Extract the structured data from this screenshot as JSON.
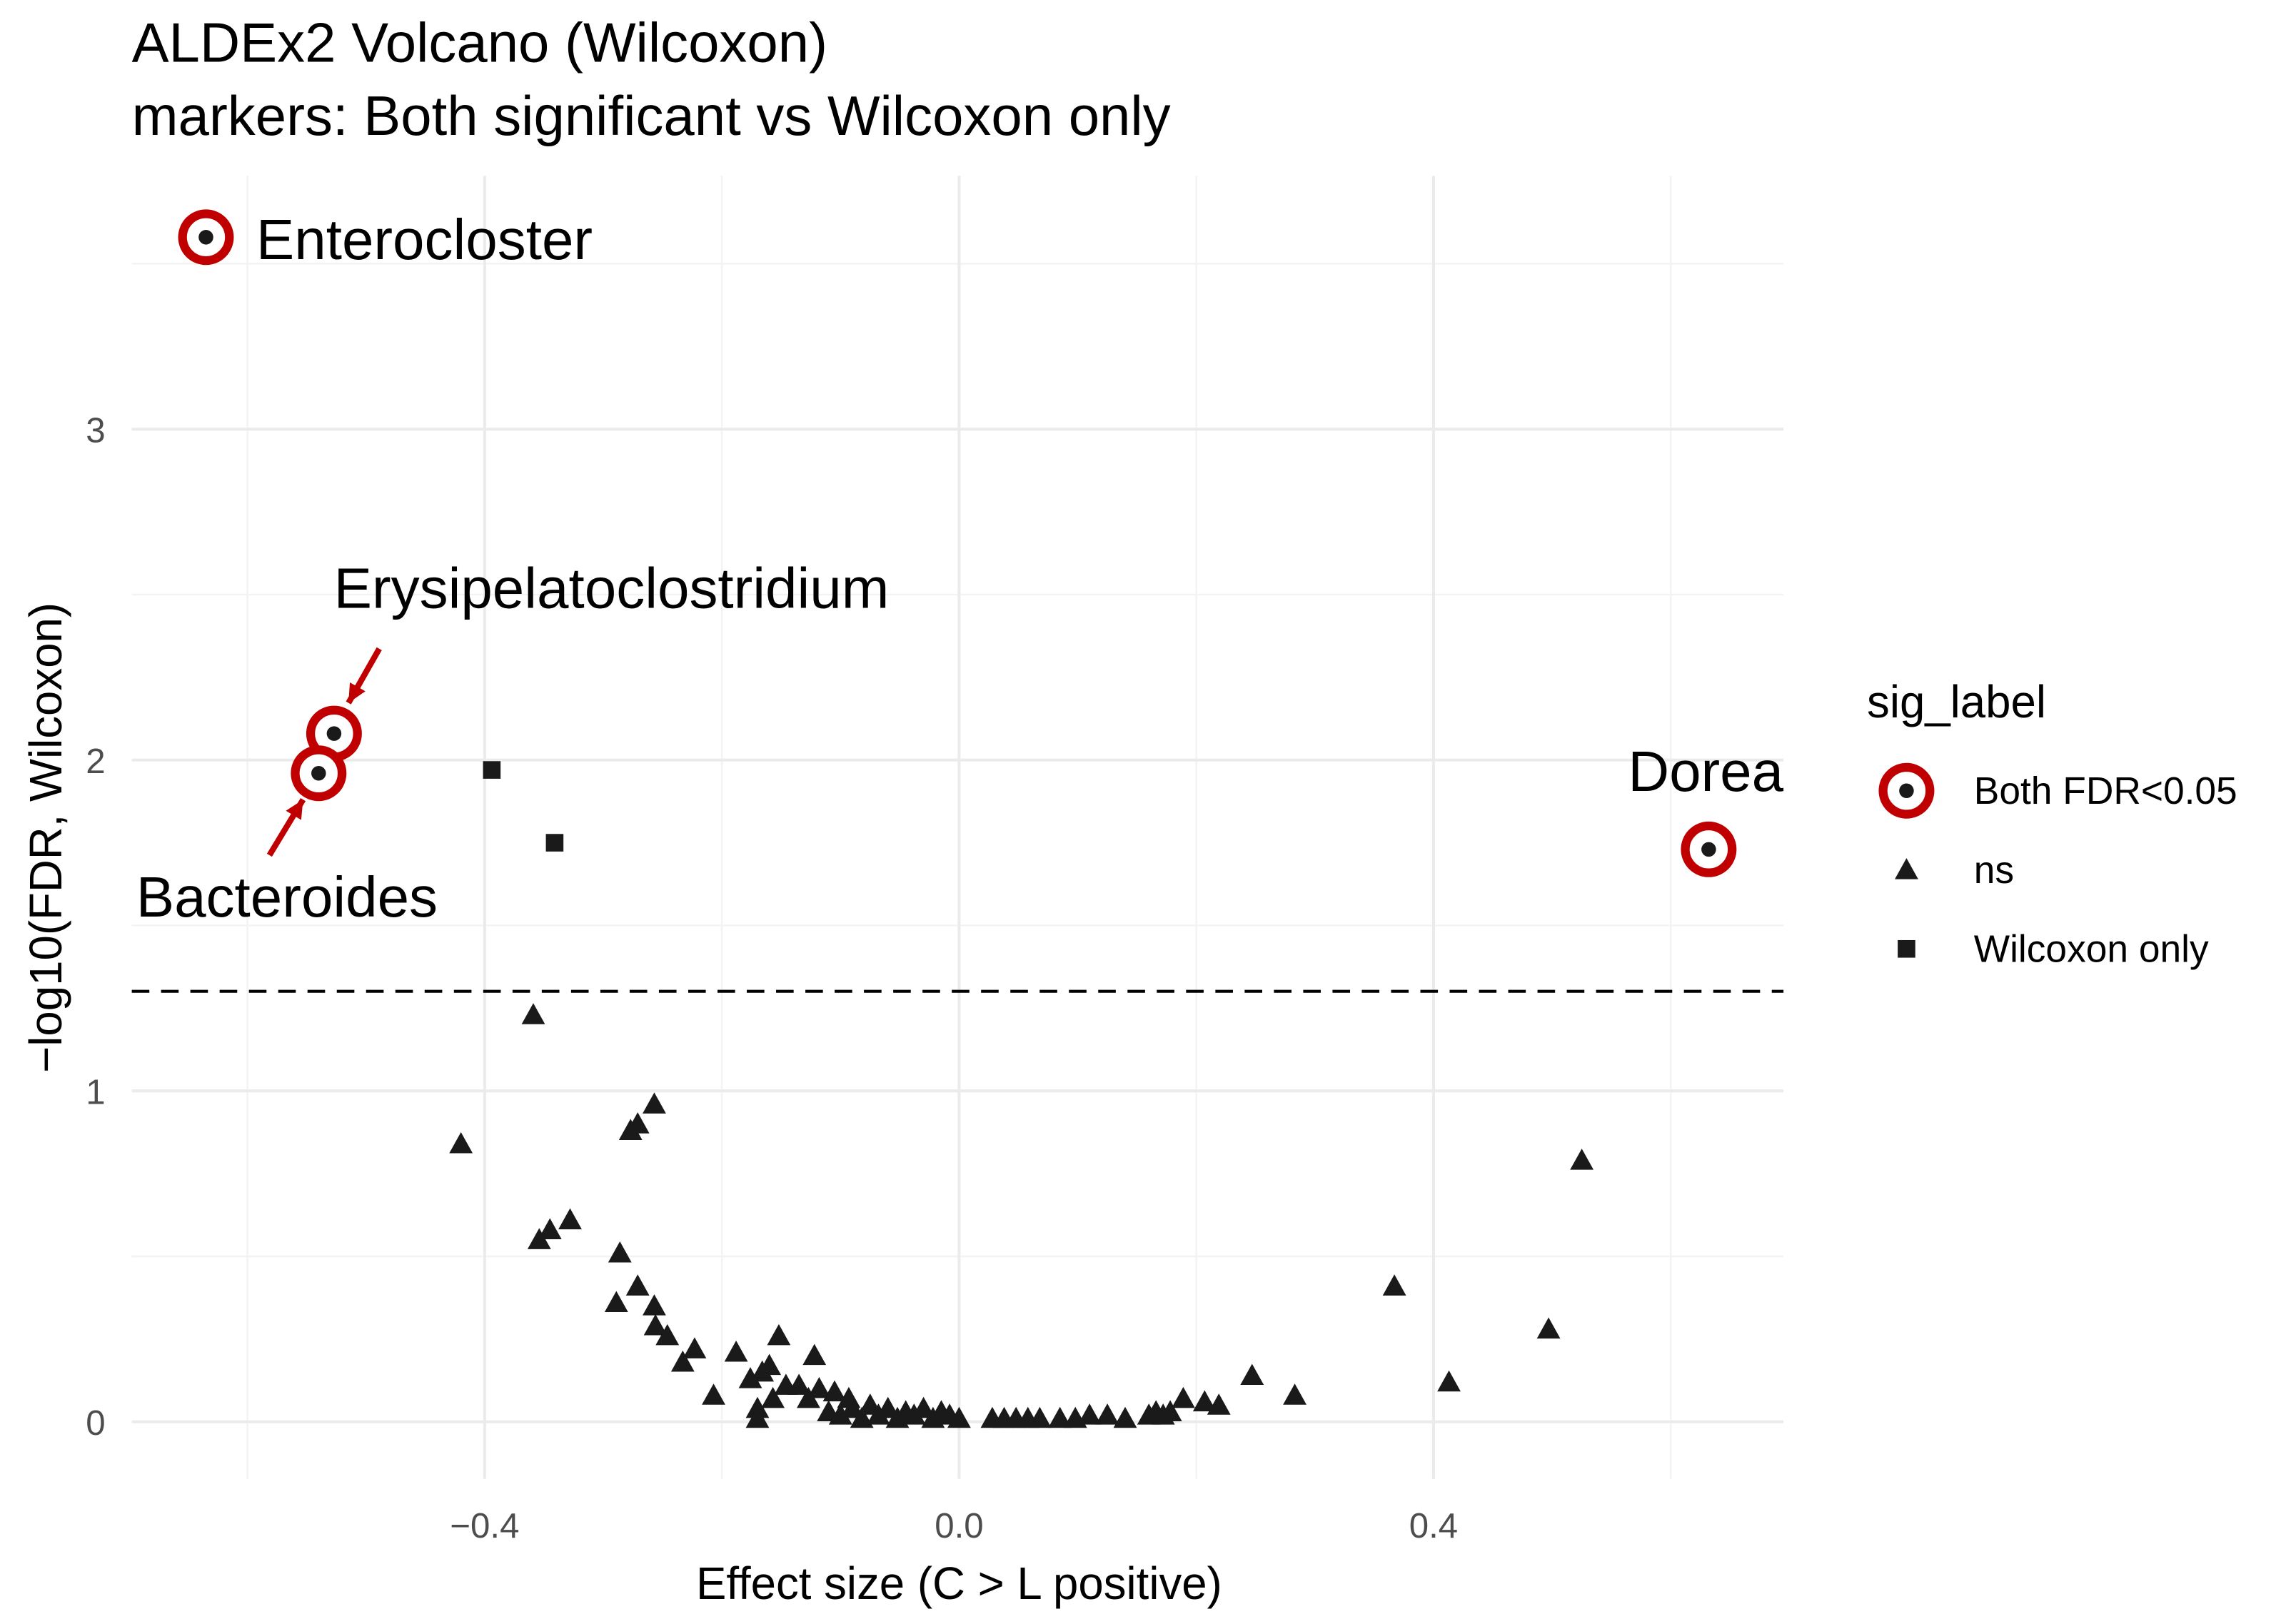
{
  "chart_data": {
    "type": "scatter",
    "title": "ALDEx2 Volcano (Wilcoxon)",
    "subtitle": "markers: Both significant vs Wilcoxon only",
    "xlabel": "Effect size (C > L positive)",
    "ylabel": "−log10(FDR, Wilcoxon)",
    "xlim": [
      -0.7,
      0.7
    ],
    "ylim": [
      -0.15,
      3.75
    ],
    "x_ticks": [
      {
        "value": -0.4,
        "label": "−0.4"
      },
      {
        "value": 0.0,
        "label": "0.0"
      },
      {
        "value": 0.4,
        "label": "0.4"
      }
    ],
    "y_ticks": [
      {
        "value": 0,
        "label": "0"
      },
      {
        "value": 1,
        "label": "1"
      },
      {
        "value": 2,
        "label": "2"
      },
      {
        "value": 3,
        "label": "3"
      }
    ],
    "grid": true,
    "threshold_line": {
      "y": 1.301,
      "style": "dashed"
    },
    "legend": {
      "title": "sig_label",
      "position": "right",
      "entries": [
        {
          "label": "Both FDR<0.05",
          "marker": "ringed-circle"
        },
        {
          "label": "ns",
          "marker": "triangle"
        },
        {
          "label": "Wilcoxon only",
          "marker": "square"
        }
      ]
    },
    "colors": {
      "highlight": "#c00000",
      "point": "#1a1a1a",
      "text": "#000000"
    },
    "series": [
      {
        "name": "Both FDR<0.05",
        "points": [
          {
            "x": -0.635,
            "y": 3.58,
            "label": "Enterocloster"
          },
          {
            "x": -0.527,
            "y": 2.08,
            "label": "Erysipelatoclostridium"
          },
          {
            "x": -0.54,
            "y": 1.96,
            "label": "Bacteroides"
          },
          {
            "x": 0.632,
            "y": 1.73,
            "label": "Dorea"
          }
        ]
      },
      {
        "name": "Wilcoxon only",
        "points": [
          {
            "x": -0.394,
            "y": 1.97
          },
          {
            "x": -0.341,
            "y": 1.75
          }
        ]
      },
      {
        "name": "ns",
        "points": [
          {
            "x": -0.42,
            "y": 0.84
          },
          {
            "x": -0.359,
            "y": 1.23
          },
          {
            "x": -0.354,
            "y": 0.55
          },
          {
            "x": -0.345,
            "y": 0.58
          },
          {
            "x": -0.328,
            "y": 0.61
          },
          {
            "x": -0.277,
            "y": 0.88
          },
          {
            "x": -0.271,
            "y": 0.9
          },
          {
            "x": -0.257,
            "y": 0.96
          },
          {
            "x": -0.286,
            "y": 0.51
          },
          {
            "x": -0.289,
            "y": 0.36
          },
          {
            "x": -0.271,
            "y": 0.41
          },
          {
            "x": -0.257,
            "y": 0.35
          },
          {
            "x": -0.256,
            "y": 0.29
          },
          {
            "x": -0.246,
            "y": 0.26
          },
          {
            "x": -0.233,
            "y": 0.18
          },
          {
            "x": -0.223,
            "y": 0.22
          },
          {
            "x": -0.207,
            "y": 0.08
          },
          {
            "x": -0.188,
            "y": 0.21
          },
          {
            "x": -0.152,
            "y": 0.26
          },
          {
            "x": -0.122,
            "y": 0.2
          },
          {
            "x": -0.176,
            "y": 0.13
          },
          {
            "x": -0.166,
            "y": 0.15
          },
          {
            "x": -0.16,
            "y": 0.17
          },
          {
            "x": -0.17,
            "y": 0.04
          },
          {
            "x": -0.17,
            "y": 0.01
          },
          {
            "x": -0.157,
            "y": 0.07
          },
          {
            "x": -0.146,
            "y": 0.11
          },
          {
            "x": -0.135,
            "y": 0.11
          },
          {
            "x": -0.127,
            "y": 0.07
          },
          {
            "x": -0.118,
            "y": 0.1
          },
          {
            "x": -0.105,
            "y": 0.09
          },
          {
            "x": -0.093,
            "y": 0.07
          },
          {
            "x": -0.11,
            "y": 0.03
          },
          {
            "x": -0.1,
            "y": 0.02
          },
          {
            "x": -0.09,
            "y": 0.04
          },
          {
            "x": -0.082,
            "y": 0.01
          },
          {
            "x": -0.075,
            "y": 0.05
          },
          {
            "x": -0.068,
            "y": 0.02
          },
          {
            "x": -0.06,
            "y": 0.04
          },
          {
            "x": -0.052,
            "y": 0.01
          },
          {
            "x": -0.045,
            "y": 0.03
          },
          {
            "x": -0.038,
            "y": 0.02
          },
          {
            "x": -0.03,
            "y": 0.04
          },
          {
            "x": -0.022,
            "y": 0.01
          },
          {
            "x": -0.015,
            "y": 0.03
          },
          {
            "x": -0.008,
            "y": 0.02
          },
          {
            "x": 0.0,
            "y": 0.01
          },
          {
            "x": 0.028,
            "y": 0.01
          },
          {
            "x": 0.038,
            "y": 0.01
          },
          {
            "x": 0.048,
            "y": 0.01
          },
          {
            "x": 0.058,
            "y": 0.01
          },
          {
            "x": 0.068,
            "y": 0.01
          },
          {
            "x": 0.085,
            "y": 0.01
          },
          {
            "x": 0.098,
            "y": 0.01
          },
          {
            "x": 0.11,
            "y": 0.02
          },
          {
            "x": 0.125,
            "y": 0.02
          },
          {
            "x": 0.14,
            "y": 0.01
          },
          {
            "x": 0.16,
            "y": 0.02
          },
          {
            "x": 0.166,
            "y": 0.03
          },
          {
            "x": 0.172,
            "y": 0.02
          },
          {
            "x": 0.178,
            "y": 0.03
          },
          {
            "x": 0.189,
            "y": 0.07
          },
          {
            "x": 0.207,
            "y": 0.06
          },
          {
            "x": 0.219,
            "y": 0.05
          },
          {
            "x": 0.247,
            "y": 0.14
          },
          {
            "x": 0.283,
            "y": 0.08
          },
          {
            "x": 0.367,
            "y": 0.41
          },
          {
            "x": 0.413,
            "y": 0.12
          },
          {
            "x": 0.497,
            "y": 0.28
          },
          {
            "x": 0.525,
            "y": 0.79
          }
        ]
      }
    ]
  }
}
